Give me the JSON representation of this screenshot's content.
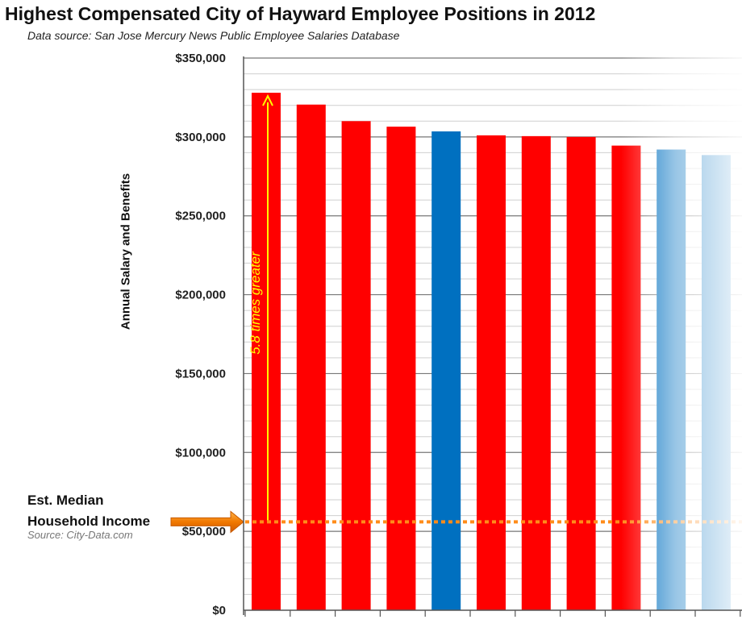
{
  "chart_data": {
    "type": "bar",
    "title": "Highest Compensated City of Hayward Employee Positions in 2012",
    "subtitle": "Data source: San Jose Mercury News Public Employee Salaries Database",
    "ylabel": "Annual Salary and Benefits",
    "xlabel": "",
    "ylim": [
      0,
      350000
    ],
    "yticks": [
      0,
      50000,
      100000,
      150000,
      200000,
      250000,
      300000,
      350000
    ],
    "ytick_labels": [
      "$0",
      "$50,000",
      "$100,000",
      "$150,000",
      "$200,000",
      "$250,000",
      "$300,000",
      "$350,000"
    ],
    "grid": true,
    "values": [
      328000,
      320500,
      310000,
      306500,
      303500,
      301000,
      300500,
      300000,
      294500,
      292000,
      288500
    ],
    "bar_colors": [
      "#ff0000",
      "#ff0000",
      "#ff0000",
      "#ff0000",
      "#0070c0",
      "#ff0000",
      "#ff0000",
      "#ff0000",
      "#ff0000",
      "#0070c0",
      "#0070c0"
    ],
    "reference_line": {
      "value": 56000,
      "label": "Est. Median Household Income",
      "source": "Source: City-Data.com",
      "color": "#ff8c1a"
    },
    "annotation": {
      "text": "5.8 times greater",
      "color": "#ffff00"
    }
  },
  "colors": {
    "red": "#ff0000",
    "blue": "#0070c0",
    "median": "#ff8c1a",
    "arrow": "#f07800",
    "annotation": "#ffff00"
  }
}
